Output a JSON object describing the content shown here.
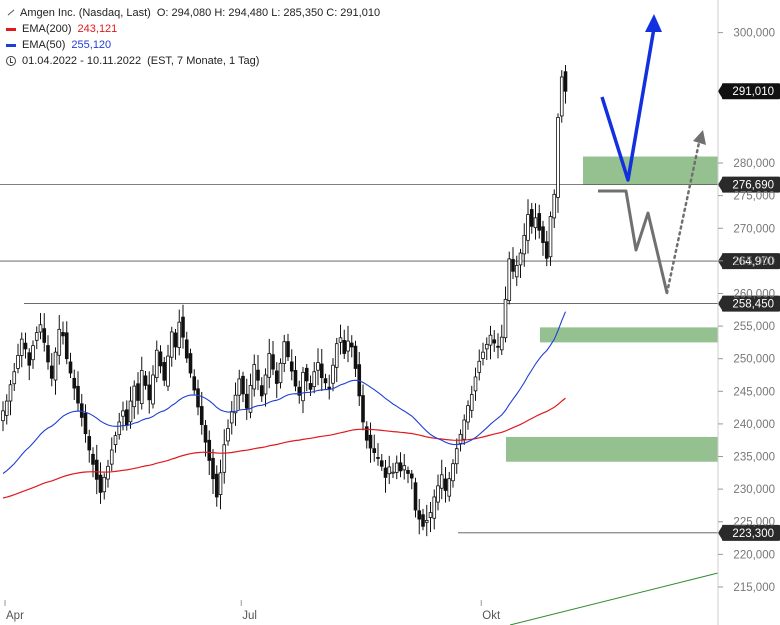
{
  "legend": {
    "title": "Amgen Inc. (Nasdaq, Last)",
    "ohlc": "O: 294,080  H: 294,480  L: 285,350  C: 291,010",
    "ema200_label": "EMA(200)",
    "ema200_value": "243,121",
    "ema50_label": "EMA(50)",
    "ema50_value": "255,120",
    "period": "01.04.2022 - 10.11.2022",
    "period_info": "(EST, 7 Monate, 1 Tag)"
  },
  "colors": {
    "ema200": "#e0191e",
    "ema50": "#1e3fd6",
    "zone": "#8fbe8a",
    "arrow_blue": "#1230e0",
    "arrow_gray": "#707070",
    "trend": "#2e8b2e"
  },
  "chart_data": {
    "type": "candlestick",
    "title": "Amgen Inc. (Nasdaq, Last)",
    "ylim": [
      213000,
      305000
    ],
    "y_ticks": [
      {
        "value": 215000,
        "label": "215,000"
      },
      {
        "value": 220000,
        "label": "220,000"
      },
      {
        "value": 225000,
        "label": "225,000"
      },
      {
        "value": 230000,
        "label": "230,000"
      },
      {
        "value": 235000,
        "label": "235,000"
      },
      {
        "value": 240000,
        "label": "240,000"
      },
      {
        "value": 245000,
        "label": "245,000"
      },
      {
        "value": 250000,
        "label": "250,000"
      },
      {
        "value": 255000,
        "label": "255,000"
      },
      {
        "value": 260000,
        "label": "260,000"
      },
      {
        "value": 265000,
        "label": "265,000"
      },
      {
        "value": 270000,
        "label": "270,000"
      },
      {
        "value": 275000,
        "label": "275,000"
      },
      {
        "value": 280000,
        "label": "280,000"
      },
      {
        "value": 300000,
        "label": "300,000"
      }
    ],
    "x_ticks": [
      {
        "index": 0,
        "label": "Apr"
      },
      {
        "index": 63,
        "label": "Jul"
      },
      {
        "index": 127,
        "label": "Okt"
      }
    ],
    "candles_count": 157,
    "closes": [
      242000,
      243500,
      246000,
      248000,
      250500,
      253000,
      251500,
      249000,
      252000,
      254000,
      255200,
      252500,
      249500,
      247000,
      251000,
      254500,
      253500,
      250000,
      247800,
      245500,
      243200,
      241000,
      238500,
      236000,
      233800,
      231500,
      229500,
      231800,
      233500,
      236000,
      238200,
      240300,
      242000,
      239800,
      243500,
      245800,
      243600,
      248200,
      245900,
      243700,
      247500,
      251300,
      248900,
      246700,
      250400,
      254100,
      251800,
      255600,
      253300,
      250100,
      247800,
      245200,
      242600,
      239900,
      237200,
      234400,
      231600,
      228800,
      232500,
      236800,
      239300,
      241900,
      244400,
      246900,
      244600,
      242400,
      245900,
      249100,
      246700,
      244300,
      247500,
      250800,
      248400,
      246200,
      249300,
      252600,
      250300,
      248100,
      245800,
      244400,
      247900,
      246600,
      245300,
      248000,
      249400,
      247100,
      246300,
      245400,
      249000,
      252300,
      253200,
      250800,
      252700,
      251800,
      248500,
      244300,
      240300,
      237500,
      236300,
      235600,
      234800,
      233500,
      231800,
      233400,
      232600,
      234000,
      232800,
      233600,
      232400,
      231700,
      226800,
      225400,
      224300,
      225200,
      226400,
      228800,
      230500,
      232200,
      229800,
      231600,
      233900,
      236200,
      238400,
      240600,
      242800,
      244500,
      247200,
      249600,
      251000,
      252200,
      253600,
      252400,
      251900,
      253300,
      259100,
      265300,
      263400,
      264300,
      266200,
      268900,
      272100,
      270300,
      271600,
      269700,
      267800,
      265400,
      271800,
      275200,
      287000,
      293200,
      291010
    ],
    "zones": [
      {
        "low": 276690,
        "high": 281000,
        "label": "zone-1"
      },
      {
        "low": 252500,
        "high": 254800,
        "label": "zone-2"
      },
      {
        "low": 234200,
        "high": 238000,
        "label": "zone-3"
      }
    ],
    "levels": [
      {
        "value": 291010,
        "label": "291,010",
        "style": "current"
      },
      {
        "value": 276690,
        "label": "276,690",
        "style": "line"
      },
      {
        "value": 264970,
        "label": "264,970",
        "style": "line"
      },
      {
        "value": 258450,
        "label": "258,450",
        "style": "line"
      },
      {
        "value": 223300,
        "label": "223,300",
        "style": "line"
      }
    ]
  }
}
